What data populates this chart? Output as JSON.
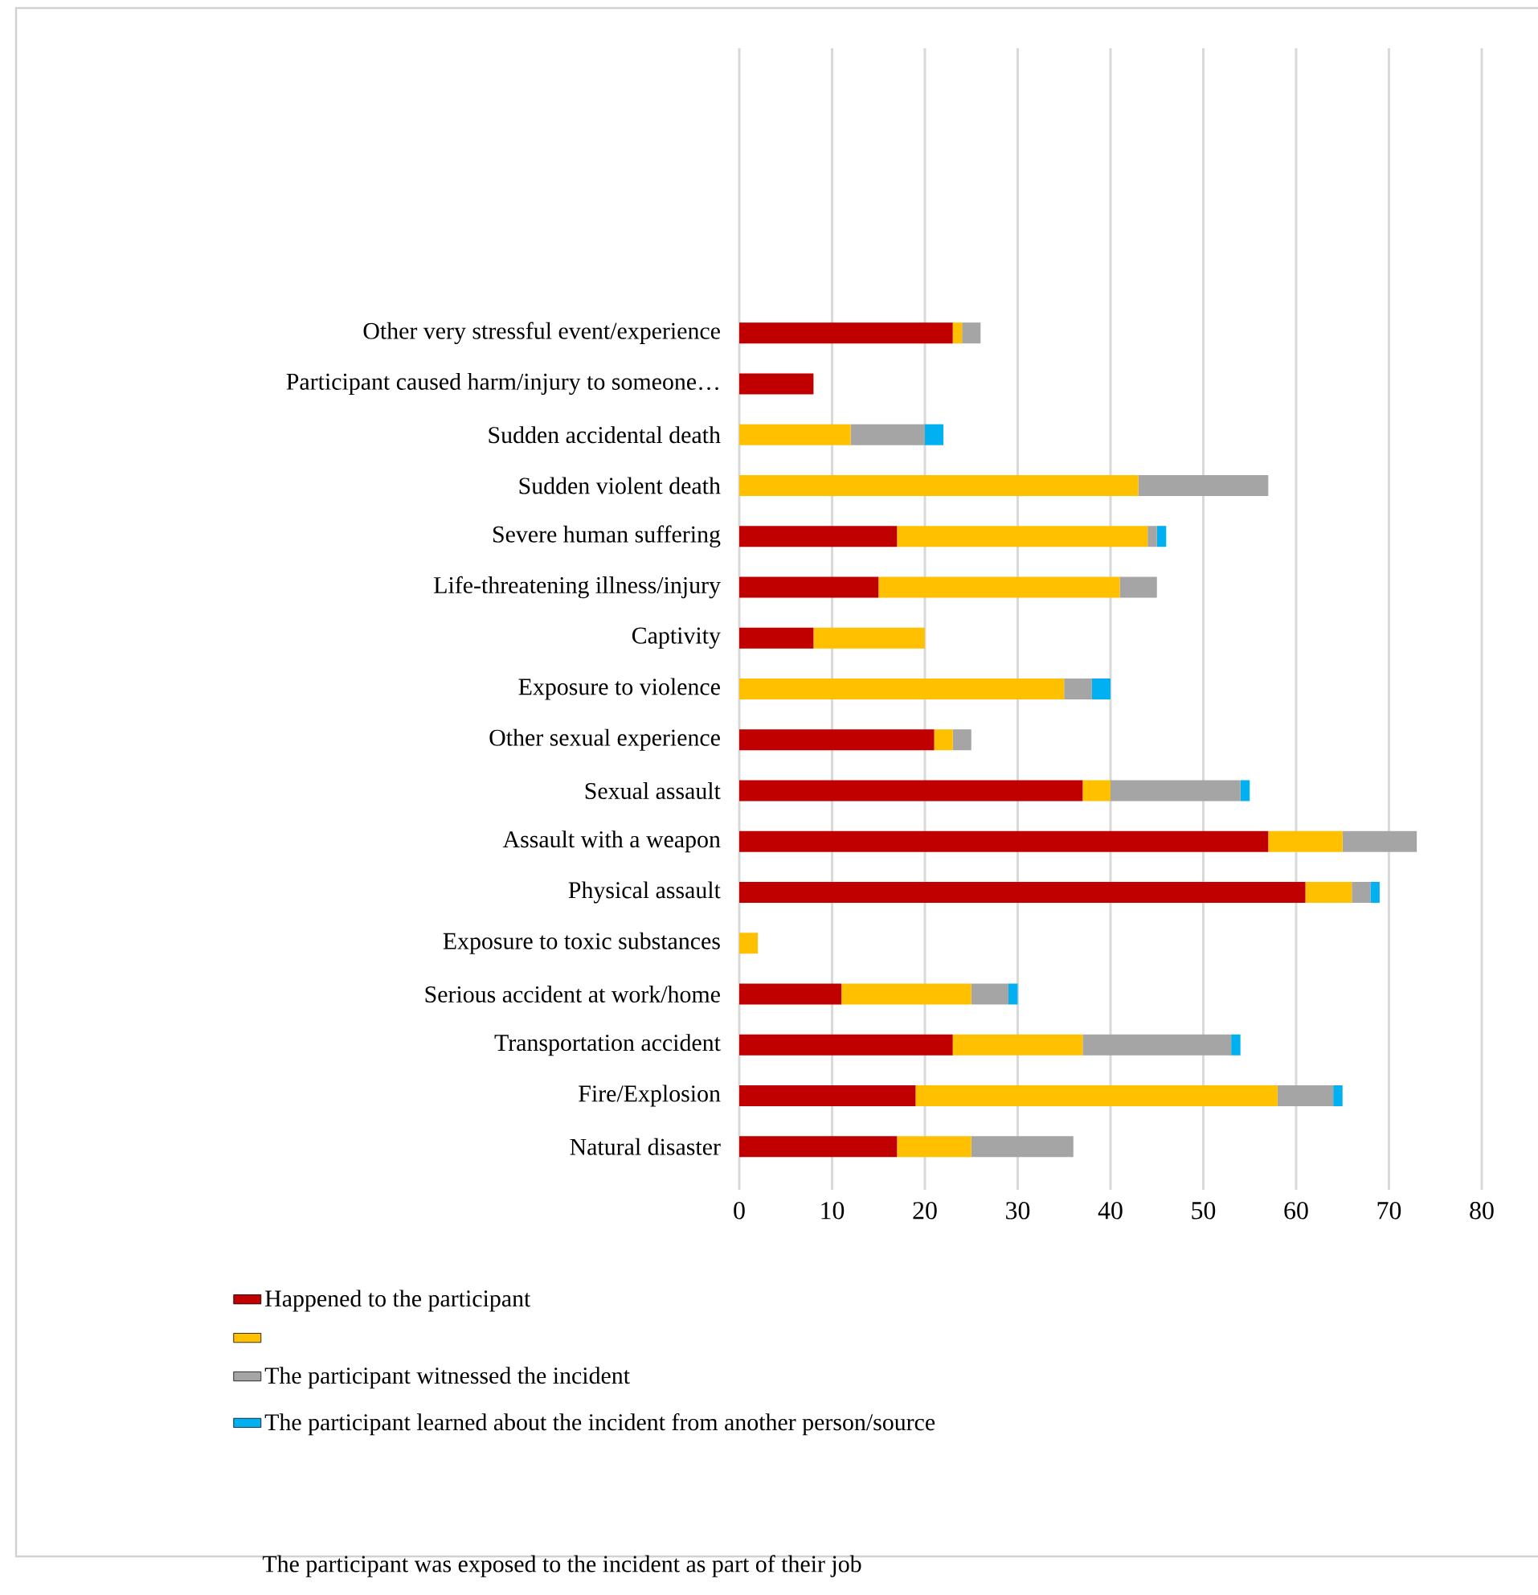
{
  "chart_data": {
    "type": "bar",
    "orientation": "horizontal",
    "stacked": true,
    "categories": [
      "Other very stressful event/experience",
      "Participant caused harm/injury to someone…",
      "Sudden accidental death",
      "Sudden violent death",
      "Severe human suffering",
      "Life-threatening illness/injury",
      "Captivity",
      "Exposure to violence",
      "Other sexual experience",
      "Sexual assault",
      "Assault with a weapon",
      "Physical assault",
      "Exposure to toxic substances",
      "Serious accident at work/home",
      "Transportation accident",
      "Fire/Explosion",
      "Natural disaster"
    ],
    "series": [
      {
        "name": "Happened to the participant",
        "color": "#c00000",
        "values": [
          23,
          8,
          0,
          0,
          17,
          15,
          8,
          0,
          21,
          37,
          57,
          61,
          0,
          11,
          23,
          19,
          17
        ]
      },
      {
        "color": "#ffc000",
        "values": [
          1,
          0,
          12,
          43,
          27,
          26,
          12,
          35,
          2,
          3,
          8,
          5,
          2,
          14,
          14,
          39,
          8
        ]
      },
      {
        "name": "The participant witnessed the incident",
        "color": "#a5a5a5",
        "values": [
          2,
          0,
          8,
          14,
          1,
          4,
          0,
          3,
          2,
          14,
          8,
          2,
          0,
          4,
          16,
          6,
          11
        ]
      },
      {
        "name": "The participant learned about the incident  from another person/source",
        "color": "#00b0f0",
        "values": [
          0,
          0,
          2,
          0,
          1,
          0,
          0,
          2,
          0,
          1,
          0,
          1,
          0,
          1,
          1,
          1,
          0
        ]
      }
    ],
    "xlim": [
      0,
      80
    ],
    "xticks": [
      0,
      10,
      20,
      30,
      40,
      50,
      60,
      70,
      80
    ],
    "grid": "x",
    "legend": "bottom",
    "annotations": [
      "The participant was exposed to the incident as part of their job"
    ]
  }
}
